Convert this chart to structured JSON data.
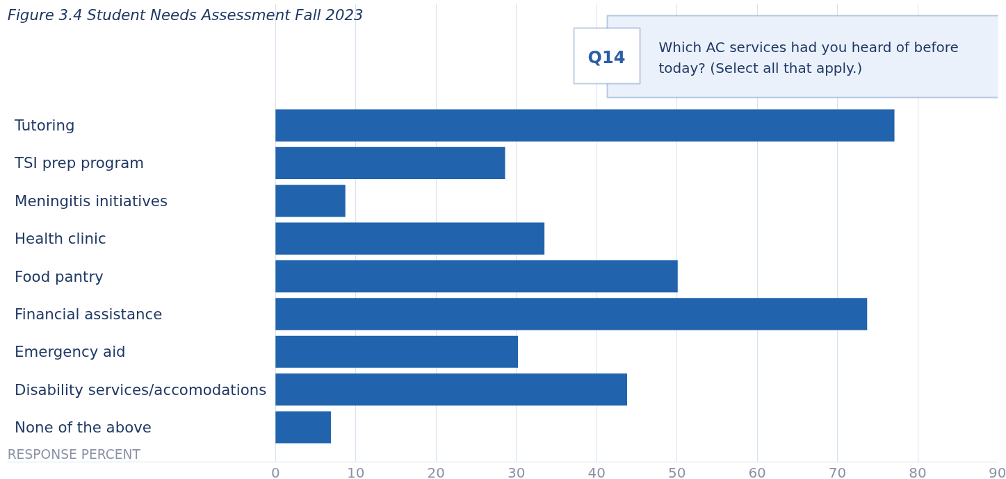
{
  "chart_data": {
    "type": "bar",
    "orientation": "horizontal",
    "title": "Figure 3.4 Student Needs Assessment Fall 2023",
    "categories": [
      "Tutoring",
      "TSI prep program",
      "Meningitis initiatives",
      "Health clinic",
      "Food pantry",
      "Financial assistance",
      "Emergency aid",
      "Disability services/accomodations",
      "None of the above"
    ],
    "values": [
      77.1,
      28.6,
      8.7,
      33.5,
      50.1,
      73.7,
      30.2,
      43.8,
      6.9
    ],
    "color": "#2163ad",
    "xlabel": "RESPONSE PERCENT",
    "xlim": [
      -33.5,
      90
    ],
    "xticks": [
      0,
      10,
      20,
      30,
      40,
      50,
      60,
      70,
      80,
      90
    ],
    "grid": "x",
    "annotations": [
      "Q14",
      "Which AC services had you heard of before today? (Select all that apply.)"
    ]
  }
}
